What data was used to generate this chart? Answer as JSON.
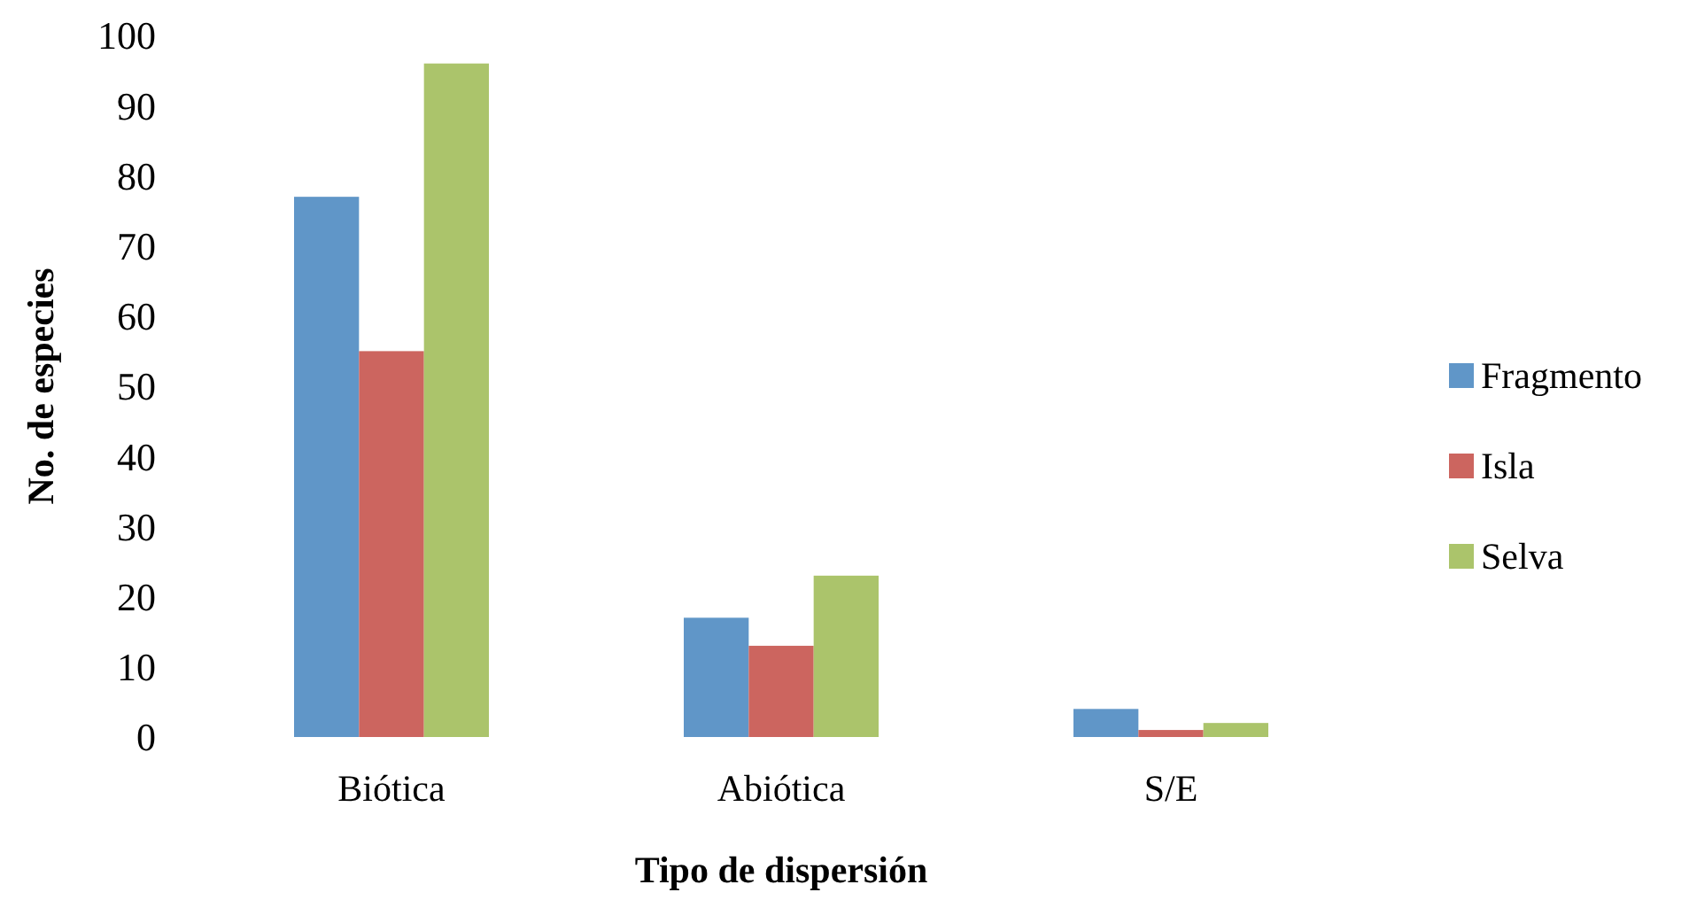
{
  "chart_data": {
    "type": "bar",
    "xlabel": "Tipo de dispersión",
    "ylabel": "No. de especies",
    "categories": [
      "Biótica",
      "Abiótica",
      "S/E"
    ],
    "series": [
      {
        "name": "Fragmento",
        "color": "#6096c8",
        "values": [
          77,
          17,
          4
        ]
      },
      {
        "name": "Isla",
        "color": "#cc655f",
        "values": [
          55,
          13,
          1
        ]
      },
      {
        "name": "Selva",
        "color": "#abc46b",
        "values": [
          96,
          23,
          2
        ]
      }
    ],
    "ylim": [
      0,
      100
    ],
    "yticks": [
      0,
      10,
      20,
      30,
      40,
      50,
      60,
      70,
      80,
      90,
      100
    ],
    "grid": false,
    "legend": "right"
  }
}
